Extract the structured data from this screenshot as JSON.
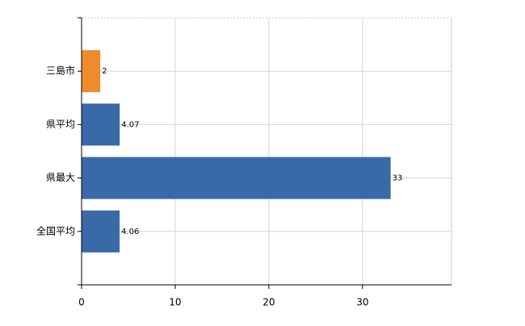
{
  "chart_data": {
    "type": "hbar",
    "categories": [
      "三島市",
      "県平均",
      "県最大",
      "全国平均"
    ],
    "values": [
      2,
      4.07,
      33,
      4.06
    ],
    "colors": [
      "#ee8b2c",
      "#3a69a8",
      "#3a69a8",
      "#3a69a8"
    ],
    "xlim": [
      0,
      39.5
    ],
    "xticks": [
      0,
      10,
      20,
      30
    ],
    "grid": true
  }
}
